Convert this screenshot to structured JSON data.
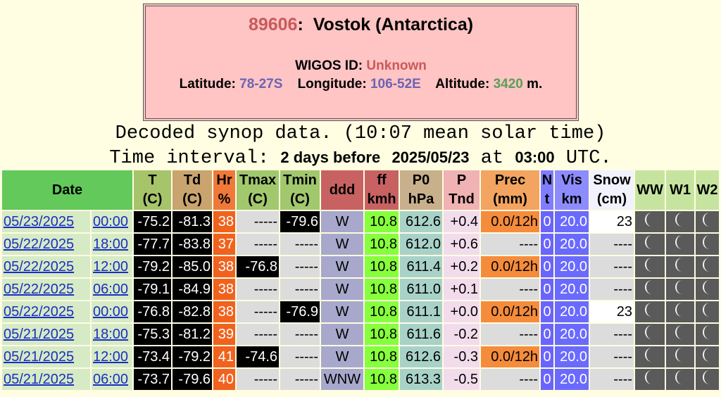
{
  "header": {
    "station_number": "89606",
    "station_sep": ":",
    "station_name": "Vostok (Antarctica)",
    "wigos_label": "WIGOS ID:",
    "wigos_value": "Unknown",
    "latitude_label": "Latitude:",
    "latitude_value": "78-27S",
    "longitude_label": "Longitude:",
    "longitude_value": "106-52E",
    "altitude_label": "Altitude:",
    "altitude_value": "3420",
    "altitude_unit": "m."
  },
  "subtitle": {
    "line1": "Decoded synop data. (10:07 mean solar time)",
    "interval_label": "Time interval:",
    "interval_value": "2 days before",
    "date": "2025/05/23",
    "at": "at",
    "time": "03:00",
    "utc": "UTC."
  },
  "table": {
    "columns": [
      [
        "Date"
      ],
      [
        "T",
        "(C)"
      ],
      [
        "Td",
        "(C)"
      ],
      [
        "Hr",
        "%"
      ],
      [
        "Tmax",
        "(C)"
      ],
      [
        "Tmin",
        "(C)"
      ],
      [
        "ddd"
      ],
      [
        "ff",
        "kmh"
      ],
      [
        "P0",
        "hPa"
      ],
      [
        "P",
        "Tnd"
      ],
      [
        "Prec",
        "(mm)"
      ],
      [
        "N",
        "t"
      ],
      [
        "Vis",
        "km"
      ],
      [
        "Snow",
        "(cm)"
      ],
      [
        "WW"
      ],
      [
        "W1"
      ],
      [
        "W2"
      ]
    ],
    "rows": [
      [
        "05/23/2025",
        "00:00",
        "-75.2",
        "-81.3",
        "38",
        "-----",
        "-79.6",
        "W",
        "10.8",
        "612.6",
        "+0.4",
        "0.0/12h",
        "0",
        "20.0",
        "23"
      ],
      [
        "05/22/2025",
        "18:00",
        "-77.7",
        "-83.8",
        "37",
        "-----",
        "-----",
        "W",
        "10.8",
        "612.0",
        "+0.6",
        "----",
        "0",
        "20.0",
        "----"
      ],
      [
        "05/22/2025",
        "12:00",
        "-79.2",
        "-85.0",
        "38",
        "-76.8",
        "-----",
        "W",
        "10.8",
        "611.4",
        "+0.2",
        "0.0/12h",
        "0",
        "20.0",
        "----"
      ],
      [
        "05/22/2025",
        "06:00",
        "-79.1",
        "-84.9",
        "38",
        "-----",
        "-----",
        "W",
        "10.8",
        "611.0",
        "+0.1",
        "----",
        "0",
        "20.0",
        "----"
      ],
      [
        "05/22/2025",
        "00:00",
        "-76.8",
        "-82.8",
        "38",
        "-----",
        "-76.9",
        "W",
        "10.8",
        "611.1",
        "+0.0",
        "0.0/12h",
        "0",
        "20.0",
        "23"
      ],
      [
        "05/21/2025",
        "18:00",
        "-75.3",
        "-81.2",
        "39",
        "-----",
        "-----",
        "W",
        "10.8",
        "611.6",
        "-0.2",
        "----",
        "0",
        "20.0",
        "----"
      ],
      [
        "05/21/2025",
        "12:00",
        "-73.4",
        "-79.2",
        "41",
        "-74.6",
        "-----",
        "W",
        "10.8",
        "612.6",
        "-0.3",
        "0.0/12h",
        "0",
        "20.0",
        "----"
      ],
      [
        "05/21/2025",
        "06:00",
        "-73.7",
        "-79.6",
        "40",
        "-----",
        "-----",
        "WNW",
        "10.8",
        "613.3",
        "-0.5",
        "----",
        "0",
        "20.0",
        "----"
      ]
    ]
  }
}
